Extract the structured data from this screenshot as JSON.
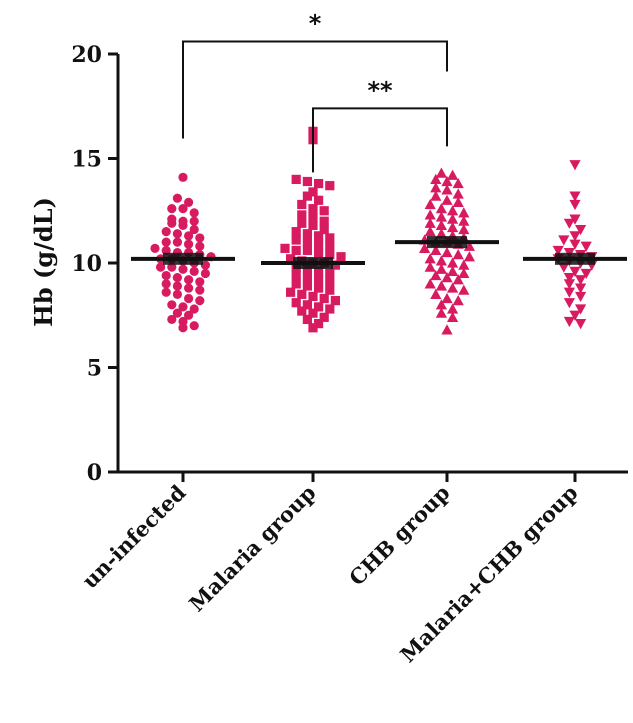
{
  "chart_data": {
    "type": "scatter",
    "ylabel": "Hb (g/dL)",
    "ylim": [
      0,
      20
    ],
    "yticks": [
      "0",
      "5",
      "10",
      "15",
      "20"
    ],
    "categories": [
      "un-infected",
      "Malaria group",
      "CHB group",
      "Malaria+CHB group"
    ],
    "colors": {
      "point": "#d81b60",
      "mean": "#111111",
      "axis": "#111111"
    },
    "grid": false,
    "series": [
      {
        "category": "un-infected",
        "marker": "circle",
        "mean": 10.2,
        "values": [
          14.1,
          13.1,
          12.9,
          12.6,
          12.6,
          12.4,
          12.1,
          12.0,
          12.0,
          11.9,
          11.8,
          11.6,
          11.5,
          11.4,
          11.3,
          11.2,
          11.0,
          11.0,
          10.9,
          10.8,
          10.7,
          10.6,
          10.5,
          10.5,
          10.4,
          10.3,
          10.2,
          10.2,
          10.1,
          10.0,
          9.9,
          9.8,
          9.8,
          9.7,
          9.6,
          9.5,
          9.4,
          9.3,
          9.2,
          9.1,
          9.0,
          8.9,
          8.8,
          8.7,
          8.6,
          8.5,
          8.3,
          8.2,
          8.0,
          7.9,
          7.8,
          7.6,
          7.5,
          7.3,
          7.2,
          7.0,
          6.9
        ]
      },
      {
        "category": "Malaria group",
        "marker": "square",
        "mean": 10.0,
        "values": [
          16.3,
          15.9,
          14.0,
          13.9,
          13.8,
          13.7,
          13.4,
          13.2,
          13.0,
          12.8,
          12.6,
          12.5,
          12.3,
          12.2,
          12.0,
          11.9,
          11.8,
          11.6,
          11.5,
          11.4,
          11.3,
          11.2,
          11.1,
          11.0,
          10.9,
          10.8,
          10.7,
          10.6,
          10.6,
          10.5,
          10.4,
          10.3,
          10.2,
          10.1,
          10.0,
          10.0,
          9.9,
          9.8,
          9.7,
          9.6,
          9.5,
          9.4,
          9.3,
          9.2,
          9.1,
          9.0,
          8.9,
          8.8,
          8.7,
          8.6,
          8.5,
          8.4,
          8.3,
          8.2,
          8.1,
          8.0,
          7.9,
          7.8,
          7.7,
          7.6,
          7.4,
          7.3,
          7.1,
          6.9
        ]
      },
      {
        "category": "CHB group",
        "marker": "triangle-up",
        "mean": 11.0,
        "values": [
          14.3,
          14.2,
          14.0,
          13.9,
          13.8,
          13.6,
          13.5,
          13.3,
          13.2,
          13.0,
          12.9,
          12.8,
          12.6,
          12.5,
          12.4,
          12.3,
          12.2,
          12.1,
          12.0,
          11.9,
          11.8,
          11.7,
          11.6,
          11.5,
          11.4,
          11.3,
          11.2,
          11.1,
          11.0,
          11.0,
          10.9,
          10.8,
          10.7,
          10.6,
          10.5,
          10.4,
          10.3,
          10.2,
          10.1,
          10.0,
          9.9,
          9.8,
          9.7,
          9.6,
          9.5,
          9.4,
          9.3,
          9.2,
          9.0,
          8.9,
          8.8,
          8.7,
          8.5,
          8.3,
          8.2,
          8.0,
          7.8,
          7.6,
          7.4,
          6.8
        ]
      },
      {
        "category": "Malaria+CHB group",
        "marker": "triangle-down",
        "mean": 10.2,
        "values": [
          14.7,
          13.2,
          12.8,
          12.1,
          11.9,
          11.6,
          11.3,
          11.1,
          10.9,
          10.8,
          10.6,
          10.5,
          10.4,
          10.3,
          10.2,
          10.1,
          10.0,
          9.9,
          9.8,
          9.6,
          9.5,
          9.3,
          9.2,
          9.0,
          8.8,
          8.6,
          8.4,
          8.1,
          7.8,
          7.5,
          7.2,
          7.1
        ]
      }
    ],
    "significance": [
      {
        "from": "un-infected",
        "to": "CHB group",
        "label": "*",
        "level": 20.6
      },
      {
        "from": "Malaria group",
        "to": "CHB group",
        "label": "**",
        "level": 17.4
      }
    ]
  }
}
